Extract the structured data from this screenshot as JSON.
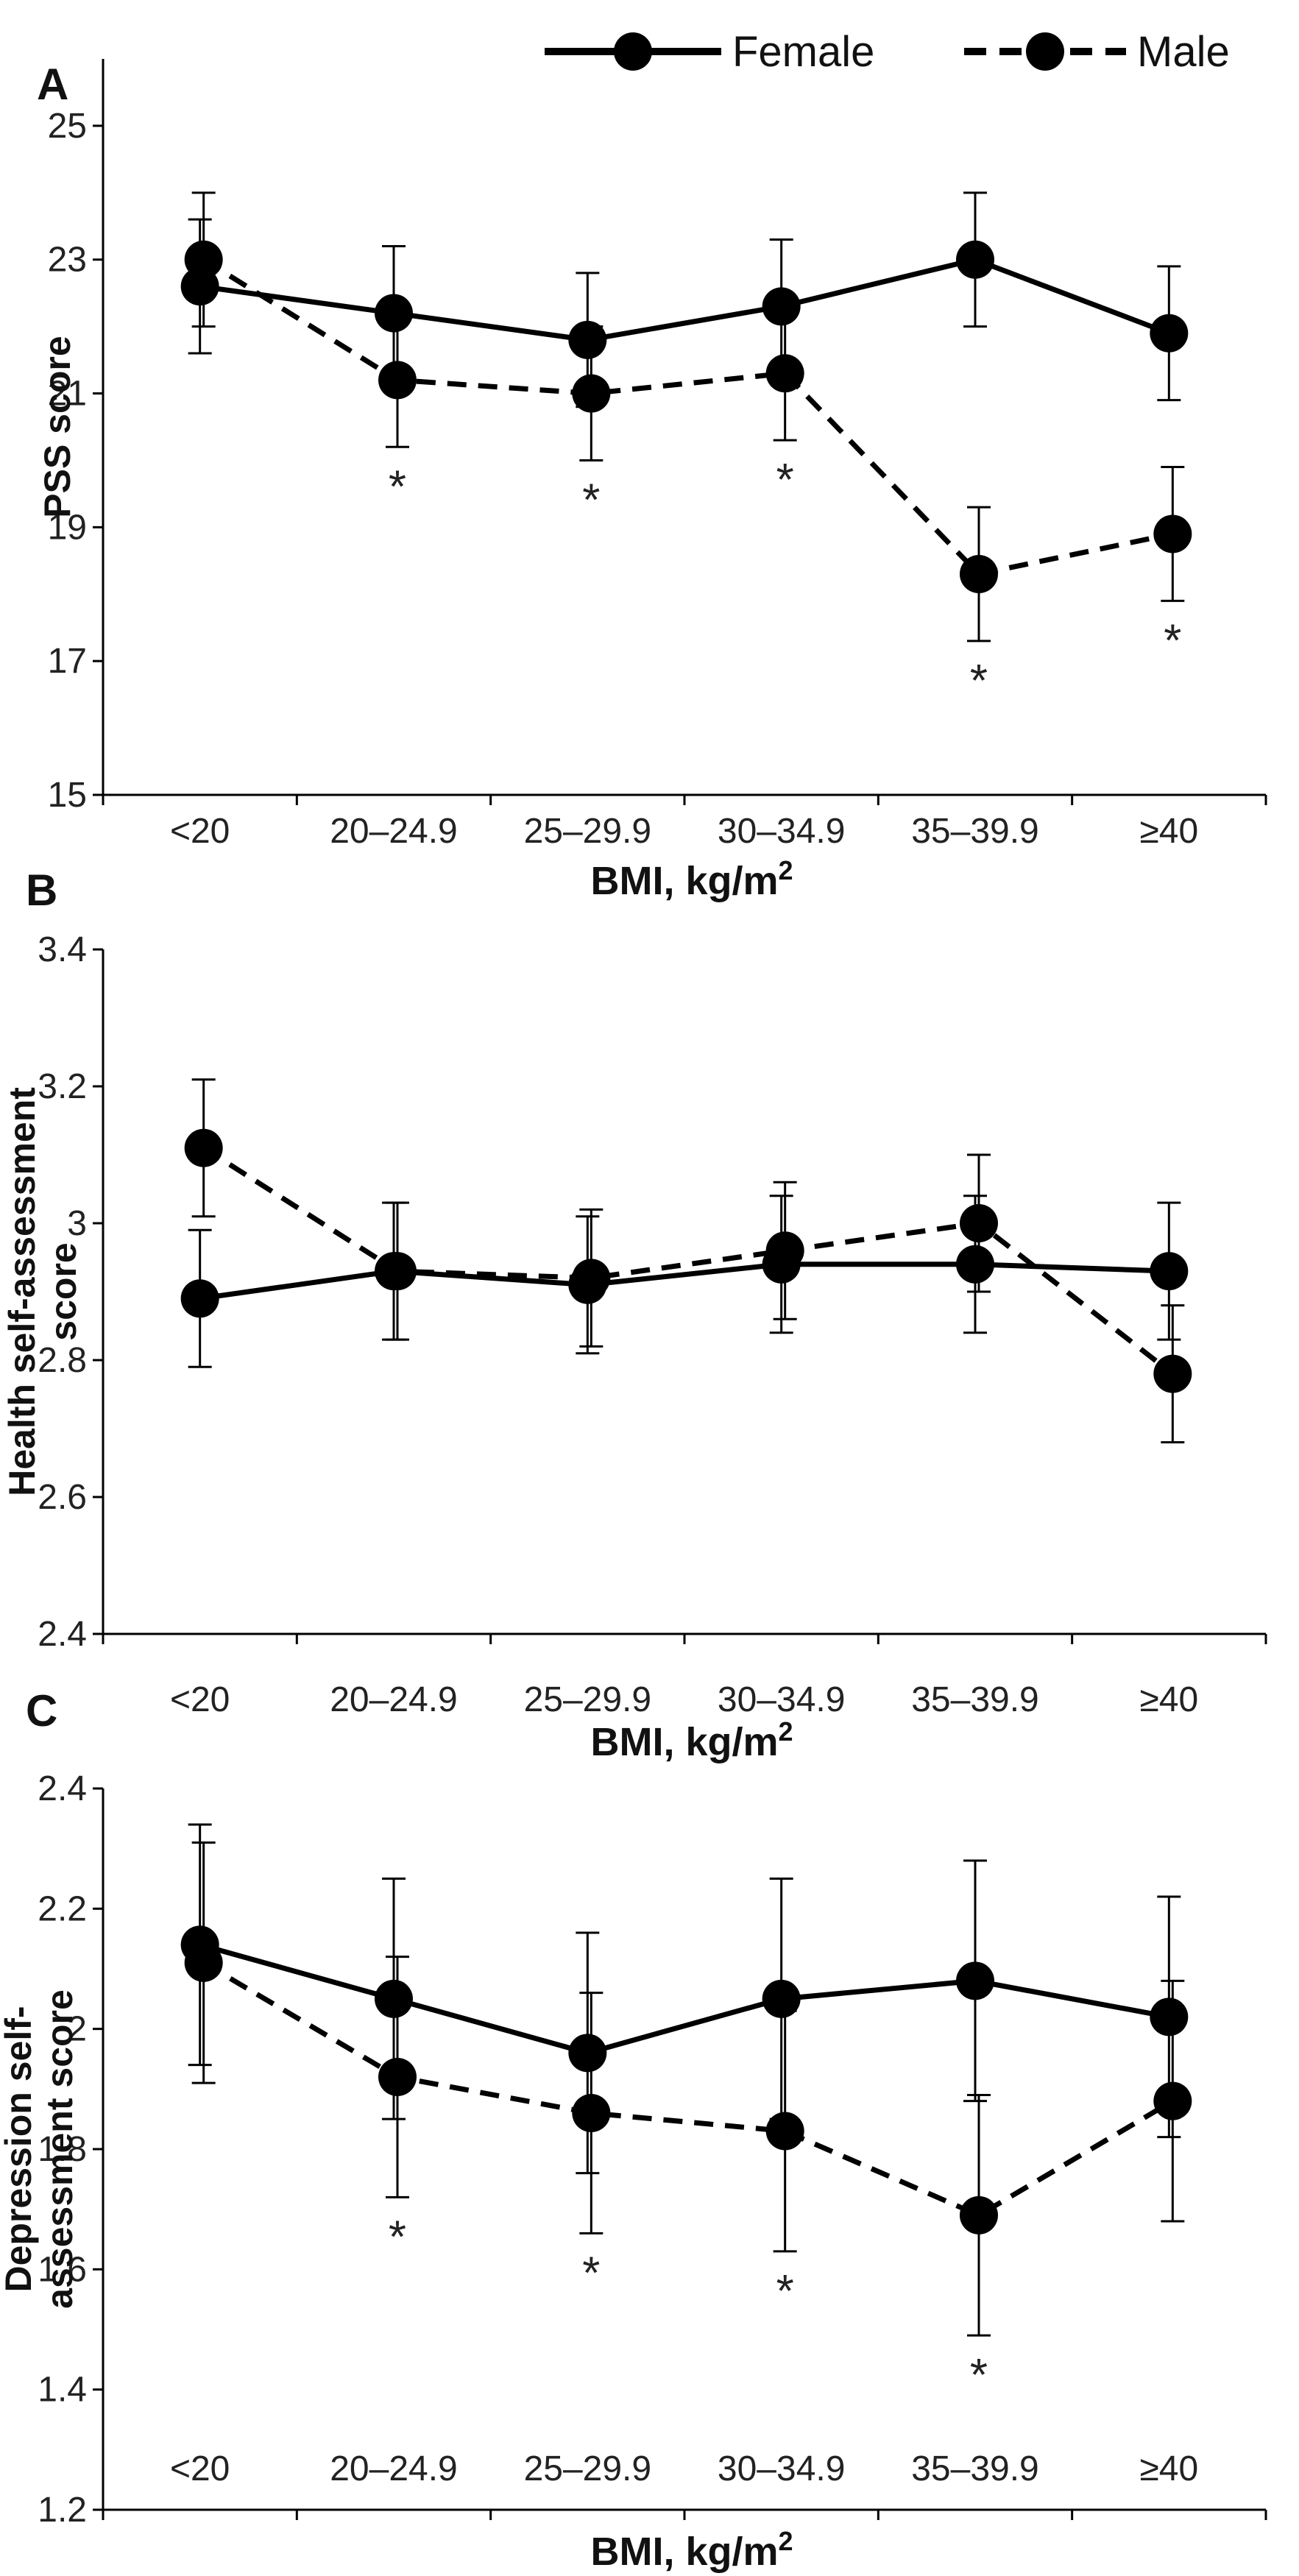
{
  "legend": {
    "female": "Female",
    "male": "Male"
  },
  "chart_data": [
    {
      "type": "line",
      "panel": "A",
      "title": "",
      "xlabel": "BMI, kg/m",
      "xlabel_sup": "2",
      "ylabel": "PSS score",
      "ylim": [
        15,
        26
      ],
      "yticks": [
        15,
        17,
        19,
        21,
        23,
        25
      ],
      "grid": false,
      "legend": "top",
      "categories": [
        "<20",
        "20–24.9",
        "25–29.9",
        "30–34.9",
        "35–39.9",
        "≥40"
      ],
      "series": [
        {
          "name": "Female",
          "style": "solid",
          "values": [
            22.6,
            22.2,
            21.8,
            22.3,
            23.0,
            21.9
          ],
          "errors": [
            1.0,
            1.0,
            1.0,
            1.0,
            1.0,
            1.0
          ]
        },
        {
          "name": "Male",
          "style": "dashed",
          "values": [
            23.0,
            21.2,
            21.0,
            21.3,
            18.3,
            18.9
          ],
          "errors": [
            1.0,
            1.0,
            1.0,
            1.0,
            1.0,
            1.0
          ]
        }
      ],
      "annotations": [
        "",
        "*",
        "*",
        "*",
        "*",
        "*"
      ]
    },
    {
      "type": "line",
      "panel": "B",
      "title": "",
      "xlabel": "BMI, kg/m",
      "xlabel_sup": "2",
      "ylabel": "Health self-assessment score",
      "ylabel_lines": [
        "Health self-assessment",
        "score"
      ],
      "ylim": [
        2.4,
        3.4
      ],
      "yticks": [
        "2.4",
        "2.6",
        "2.8",
        "3",
        "3.2",
        "3.4"
      ],
      "grid": false,
      "categories": [
        "<20",
        "20–24.9",
        "25–29.9",
        "30–34.9",
        "35–39.9",
        "≥40"
      ],
      "series": [
        {
          "name": "Female",
          "style": "solid",
          "values": [
            2.89,
            2.93,
            2.91,
            2.94,
            2.94,
            2.93
          ],
          "errors": [
            0.1,
            0.1,
            0.1,
            0.1,
            0.1,
            0.1
          ]
        },
        {
          "name": "Male",
          "style": "dashed",
          "values": [
            3.11,
            2.93,
            2.92,
            2.96,
            3.0,
            2.78
          ],
          "errors": [
            0.1,
            0.1,
            0.1,
            0.1,
            0.1,
            0.1
          ]
        }
      ],
      "annotations": [
        "",
        "",
        "",
        "",
        "",
        ""
      ]
    },
    {
      "type": "line",
      "panel": "C",
      "title": "",
      "xlabel": "BMI, kg/m",
      "xlabel_sup": "2",
      "ylabel": "Depression self-assessment score",
      "ylabel_lines": [
        "Depression self-",
        "assessment score"
      ],
      "ylim": [
        1.2,
        2.4
      ],
      "yticks": [
        "1.2",
        "1.4",
        "1.6",
        "1.8",
        "2",
        "2.2",
        "2.4"
      ],
      "grid": false,
      "categories": [
        "<20",
        "20–24.9",
        "25–29.9",
        "30–34.9",
        "35–39.9",
        "≥40"
      ],
      "series": [
        {
          "name": "Female",
          "style": "solid",
          "values": [
            2.14,
            2.05,
            1.96,
            2.05,
            2.08,
            2.02
          ],
          "errors": [
            0.2,
            0.2,
            0.2,
            0.2,
            0.2,
            0.2
          ]
        },
        {
          "name": "Male",
          "style": "dashed",
          "values": [
            2.11,
            1.92,
            1.86,
            1.83,
            1.69,
            1.88
          ],
          "errors": [
            0.2,
            0.2,
            0.2,
            0.2,
            0.2,
            0.2
          ]
        }
      ],
      "annotations": [
        "",
        "*",
        "*",
        "*",
        "*",
        ""
      ]
    }
  ]
}
